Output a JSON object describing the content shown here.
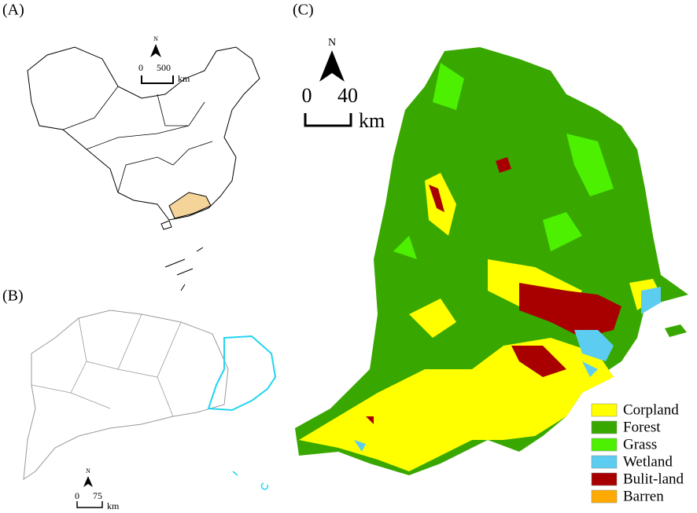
{
  "panels": [
    {
      "label": "(A)",
      "north": "N",
      "scale": {
        "start": "0",
        "end": "500",
        "unit": "km"
      }
    },
    {
      "label": "(B)",
      "north": "N",
      "scale": {
        "start": "0",
        "end": "75",
        "unit": "km"
      }
    },
    {
      "label": "(C)",
      "north": "N",
      "scale": {
        "start": "0",
        "end": "40",
        "unit": "km"
      },
      "legend": [
        {
          "name": "Corpland",
          "color": "#ffff00"
        },
        {
          "name": "Forest",
          "color": "#38a800"
        },
        {
          "name": "Grass",
          "color": "#4cf000"
        },
        {
          "name": "Wetland",
          "color": "#5ccdf0"
        },
        {
          "name": "Bulit-land",
          "color": "#a80000"
        },
        {
          "name": "Barren",
          "color": "#ffaa00"
        }
      ]
    }
  ]
}
